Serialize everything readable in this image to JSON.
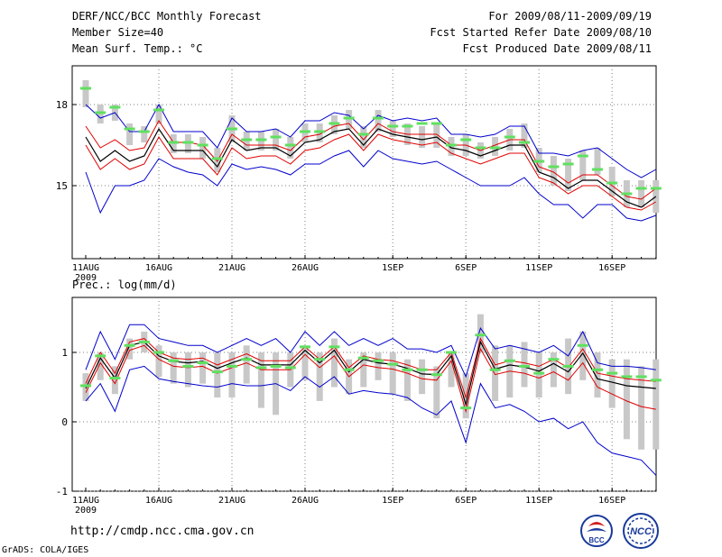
{
  "header": {
    "title": "DERF/NCC/BCC Monthly Forecast",
    "member_size": "Member Size=40",
    "variable": "Mean Surf. Temp.: °C",
    "period": "For 2009/08/11-2009/09/19",
    "started": "Fcst Started Refer Date 2009/08/10",
    "produced": "Fcst Produced Date 2009/08/11"
  },
  "footer": {
    "url": "http://cmdp.ncc.cma.gov.cn",
    "credit": "GrADS: COLA/IGES",
    "logo_bcc": "BCC",
    "logo_ncc": "NCC"
  },
  "colors": {
    "mean": "#000000",
    "spread": "#e00000",
    "envelope": "#0000cc",
    "box": "#c8c8c8",
    "marker": "#60e060",
    "grid": "#808080"
  },
  "chart_data": [
    {
      "type": "line",
      "title": "Mean Surf. Temp.: °C",
      "xlabel": "",
      "ylabel": "",
      "ylim": [
        12.8,
        19.2
      ],
      "yticks": [
        15,
        18
      ],
      "grid": true,
      "xtick_labels": [
        "11AUG\n2009",
        "16AUG",
        "21AUG",
        "26AUG",
        "1SEP",
        "6SEP",
        "11SEP",
        "16SEP"
      ],
      "xtick_days": [
        0,
        5,
        10,
        15,
        21,
        26,
        31,
        36
      ],
      "x_days": 40,
      "series": [
        {
          "name": "max",
          "values": [
            15.5,
            14.0,
            15.0,
            15.0,
            15.2,
            16.0,
            15.7,
            15.5,
            15.4,
            15.0,
            15.8,
            15.6,
            15.7,
            15.6,
            15.4,
            15.8,
            15.8,
            16.1,
            16.3,
            15.7,
            16.3,
            16.0,
            15.9,
            15.8,
            15.9,
            15.6,
            15.3,
            15.0,
            15.0,
            15.0,
            15.3,
            14.7,
            14.3,
            14.3,
            13.8,
            14.3,
            14.3,
            13.8,
            13.7,
            13.9
          ]
        },
        {
          "name": "upper_outer",
          "values": [
            18.0,
            17.5,
            17.7,
            17.0,
            17.0,
            18.0,
            17.0,
            17.0,
            17.0,
            16.4,
            17.5,
            17.0,
            17.0,
            17.1,
            16.8,
            17.4,
            17.4,
            17.7,
            17.6,
            17.1,
            17.6,
            17.4,
            17.5,
            17.4,
            17.5,
            16.9,
            16.9,
            16.8,
            16.9,
            17.2,
            17.2,
            16.2,
            16.2,
            16.1,
            16.3,
            16.4,
            16.0,
            15.6,
            15.3,
            15.6
          ]
        },
        {
          "name": "upper_spread",
          "values": [
            17.2,
            16.4,
            16.7,
            16.3,
            16.4,
            17.4,
            16.6,
            16.6,
            16.5,
            15.9,
            16.9,
            16.5,
            16.5,
            16.5,
            16.3,
            16.8,
            16.9,
            17.2,
            17.3,
            16.7,
            17.3,
            17.0,
            16.9,
            16.9,
            16.9,
            16.5,
            16.5,
            16.3,
            16.5,
            16.7,
            16.7,
            15.7,
            15.5,
            15.1,
            15.4,
            15.4,
            15.0,
            14.6,
            14.5,
            14.9
          ]
        },
        {
          "name": "mean",
          "values": [
            16.8,
            15.9,
            16.3,
            15.9,
            16.1,
            17.1,
            16.3,
            16.3,
            16.3,
            15.7,
            16.7,
            16.3,
            16.4,
            16.4,
            16.1,
            16.6,
            16.7,
            17.0,
            17.1,
            16.5,
            17.1,
            16.9,
            16.8,
            16.7,
            16.8,
            16.4,
            16.3,
            16.1,
            16.3,
            16.5,
            16.5,
            15.5,
            15.3,
            14.9,
            15.2,
            15.2,
            14.8,
            14.4,
            14.2,
            14.6
          ]
        },
        {
          "name": "lower_spread",
          "values": [
            16.5,
            15.6,
            16.0,
            15.6,
            15.8,
            16.8,
            16.0,
            16.0,
            16.0,
            15.4,
            16.4,
            16.0,
            16.1,
            16.1,
            15.8,
            16.3,
            16.4,
            16.7,
            16.9,
            16.3,
            16.9,
            16.7,
            16.6,
            16.5,
            16.6,
            16.2,
            16.0,
            15.8,
            16.0,
            16.2,
            16.2,
            15.3,
            15.1,
            14.7,
            15.0,
            15.0,
            14.6,
            14.2,
            14.1,
            14.4
          ]
        },
        {
          "name": "ensemble_median_marker",
          "values": [
            18.6,
            17.7,
            17.9,
            17.1,
            17.0,
            17.8,
            16.6,
            16.6,
            16.5,
            16.0,
            17.1,
            16.7,
            16.7,
            16.8,
            16.5,
            17.0,
            17.0,
            17.3,
            17.5,
            16.9,
            17.5,
            17.2,
            17.2,
            17.3,
            17.3,
            16.5,
            16.7,
            16.4,
            16.4,
            16.8,
            16.6,
            15.9,
            15.7,
            15.8,
            16.1,
            15.6,
            15.1,
            14.7,
            14.9,
            14.9
          ]
        }
      ],
      "boxes": [
        [
          17.9,
          18.9
        ],
        [
          17.3,
          18.0
        ],
        [
          17.4,
          18.0
        ],
        [
          16.5,
          17.3
        ],
        [
          16.6,
          17.2
        ],
        [
          17.3,
          18.0
        ],
        [
          16.2,
          16.9
        ],
        [
          16.2,
          16.9
        ],
        [
          16.0,
          16.8
        ],
        [
          15.5,
          16.4
        ],
        [
          16.6,
          17.6
        ],
        [
          16.3,
          17.0
        ],
        [
          16.3,
          17.0
        ],
        [
          16.3,
          17.1
        ],
        [
          16.0,
          16.8
        ],
        [
          16.6,
          17.3
        ],
        [
          16.6,
          17.3
        ],
        [
          16.9,
          17.6
        ],
        [
          17.1,
          17.8
        ],
        [
          16.4,
          17.2
        ],
        [
          17.0,
          17.8
        ],
        [
          16.8,
          17.4
        ],
        [
          16.5,
          17.3
        ],
        [
          16.4,
          17.2
        ],
        [
          16.4,
          17.3
        ],
        [
          16.1,
          16.8
        ],
        [
          16.1,
          16.9
        ],
        [
          16.0,
          16.6
        ],
        [
          16.1,
          16.8
        ],
        [
          16.3,
          17.1
        ],
        [
          16.4,
          17.3
        ],
        [
          15.5,
          16.4
        ],
        [
          15.0,
          16.1
        ],
        [
          14.8,
          16.0
        ],
        [
          15.2,
          16.3
        ],
        [
          15.4,
          16.4
        ],
        [
          14.6,
          15.7
        ],
        [
          14.2,
          15.2
        ],
        [
          14.2,
          15.2
        ],
        [
          14.0,
          15.2
        ]
      ]
    },
    {
      "type": "line",
      "title": "Prec.: log(mm/d)",
      "xlabel": "",
      "ylabel": "",
      "ylim": [
        -1,
        1.75
      ],
      "yticks": [
        -1,
        0,
        1
      ],
      "grid": true,
      "xtick_labels": [
        "11AUG\n2009",
        "16AUG",
        "21AUG",
        "26AUG",
        "1SEP",
        "6SEP",
        "11SEP",
        "16SEP"
      ],
      "xtick_days": [
        0,
        5,
        10,
        15,
        21,
        26,
        31,
        36
      ],
      "x_days": 40,
      "series": [
        {
          "name": "max",
          "values": [
            0.75,
            1.3,
            0.9,
            1.4,
            1.4,
            1.2,
            1.15,
            1.1,
            1.1,
            1.0,
            1.1,
            1.2,
            1.1,
            1.2,
            1.0,
            1.3,
            1.1,
            1.3,
            1.1,
            1.2,
            1.1,
            1.2,
            1.05,
            1.05,
            1.0,
            1.1,
            0.65,
            1.35,
            1.05,
            1.1,
            1.05,
            1.0,
            1.1,
            0.95,
            1.3,
            0.85,
            0.8,
            0.8,
            0.78,
            0.75
          ]
        },
        {
          "name": "upper_spread",
          "values": [
            0.55,
            1.0,
            0.7,
            1.15,
            1.2,
            1.0,
            0.92,
            0.9,
            0.92,
            0.82,
            0.9,
            0.98,
            0.88,
            0.88,
            0.88,
            1.08,
            0.9,
            1.08,
            0.78,
            0.95,
            0.9,
            0.88,
            0.82,
            0.75,
            0.75,
            1.0,
            0.35,
            1.2,
            0.82,
            0.88,
            0.85,
            0.8,
            0.9,
            0.78,
            1.05,
            0.7,
            0.66,
            0.62,
            0.6,
            0.58
          ]
        },
        {
          "name": "mean",
          "values": [
            0.48,
            0.92,
            0.63,
            1.1,
            1.15,
            0.95,
            0.87,
            0.85,
            0.87,
            0.77,
            0.85,
            0.92,
            0.82,
            0.82,
            0.82,
            1.03,
            0.85,
            1.03,
            0.72,
            0.9,
            0.85,
            0.83,
            0.77,
            0.69,
            0.68,
            0.95,
            0.25,
            1.15,
            0.76,
            0.82,
            0.79,
            0.73,
            0.84,
            0.72,
            0.99,
            0.62,
            0.57,
            0.52,
            0.5,
            0.48
          ]
        },
        {
          "name": "lower_spread",
          "values": [
            0.42,
            0.85,
            0.55,
            1.03,
            1.1,
            0.9,
            0.8,
            0.78,
            0.8,
            0.7,
            0.78,
            0.85,
            0.75,
            0.75,
            0.75,
            0.97,
            0.78,
            0.95,
            0.65,
            0.82,
            0.78,
            0.76,
            0.7,
            0.62,
            0.6,
            0.88,
            0.15,
            1.05,
            0.68,
            0.73,
            0.7,
            0.63,
            0.72,
            0.6,
            0.85,
            0.5,
            0.4,
            0.3,
            0.22,
            0.18
          ]
        },
        {
          "name": "min",
          "values": [
            0.3,
            0.55,
            0.15,
            0.75,
            0.8,
            0.62,
            0.58,
            0.55,
            0.52,
            0.5,
            0.55,
            0.52,
            0.52,
            0.55,
            0.45,
            0.65,
            0.5,
            0.65,
            0.4,
            0.45,
            0.42,
            0.4,
            0.35,
            0.2,
            0.1,
            0.3,
            -0.3,
            0.55,
            0.2,
            0.25,
            0.15,
            0.0,
            0.05,
            -0.1,
            0.0,
            -0.3,
            -0.45,
            -0.5,
            -0.55,
            -0.77
          ]
        },
        {
          "name": "ensemble_median_marker",
          "values": [
            0.52,
            0.95,
            0.63,
            1.1,
            1.15,
            1.0,
            0.88,
            0.8,
            0.85,
            0.72,
            0.8,
            0.9,
            0.78,
            0.8,
            0.78,
            1.08,
            0.9,
            1.08,
            0.75,
            0.92,
            0.88,
            0.83,
            0.75,
            0.75,
            0.68,
            1.0,
            0.2,
            1.25,
            0.75,
            0.88,
            0.8,
            0.7,
            0.9,
            0.8,
            1.1,
            0.75,
            0.7,
            0.65,
            0.65,
            0.6
          ]
        }
      ],
      "boxes": [
        [
          0.3,
          0.7
        ],
        [
          0.6,
          1.0
        ],
        [
          0.4,
          0.8
        ],
        [
          0.9,
          1.2
        ],
        [
          1.0,
          1.3
        ],
        [
          0.65,
          1.1
        ],
        [
          0.55,
          1.0
        ],
        [
          0.5,
          1.0
        ],
        [
          0.55,
          1.0
        ],
        [
          0.35,
          1.0
        ],
        [
          0.35,
          1.0
        ],
        [
          0.55,
          1.1
        ],
        [
          0.2,
          1.0
        ],
        [
          0.1,
          1.0
        ],
        [
          0.5,
          1.0
        ],
        [
          0.6,
          1.1
        ],
        [
          0.3,
          1.0
        ],
        [
          0.5,
          1.2
        ],
        [
          0.4,
          0.9
        ],
        [
          0.5,
          1.0
        ],
        [
          0.6,
          1.0
        ],
        [
          0.4,
          1.0
        ],
        [
          0.3,
          0.9
        ],
        [
          0.4,
          0.9
        ],
        [
          0.05,
          0.8
        ],
        [
          0.5,
          1.0
        ],
        [
          0.05,
          0.7
        ],
        [
          1.0,
          1.55
        ],
        [
          0.3,
          1.1
        ],
        [
          0.35,
          1.1
        ],
        [
          0.5,
          1.15
        ],
        [
          0.35,
          1.0
        ],
        [
          0.5,
          1.0
        ],
        [
          0.4,
          1.2
        ],
        [
          0.6,
          1.3
        ],
        [
          0.35,
          1.0
        ],
        [
          0.2,
          0.9
        ],
        [
          -0.25,
          0.9
        ],
        [
          -0.4,
          0.8
        ],
        [
          -0.4,
          0.9
        ]
      ]
    }
  ]
}
